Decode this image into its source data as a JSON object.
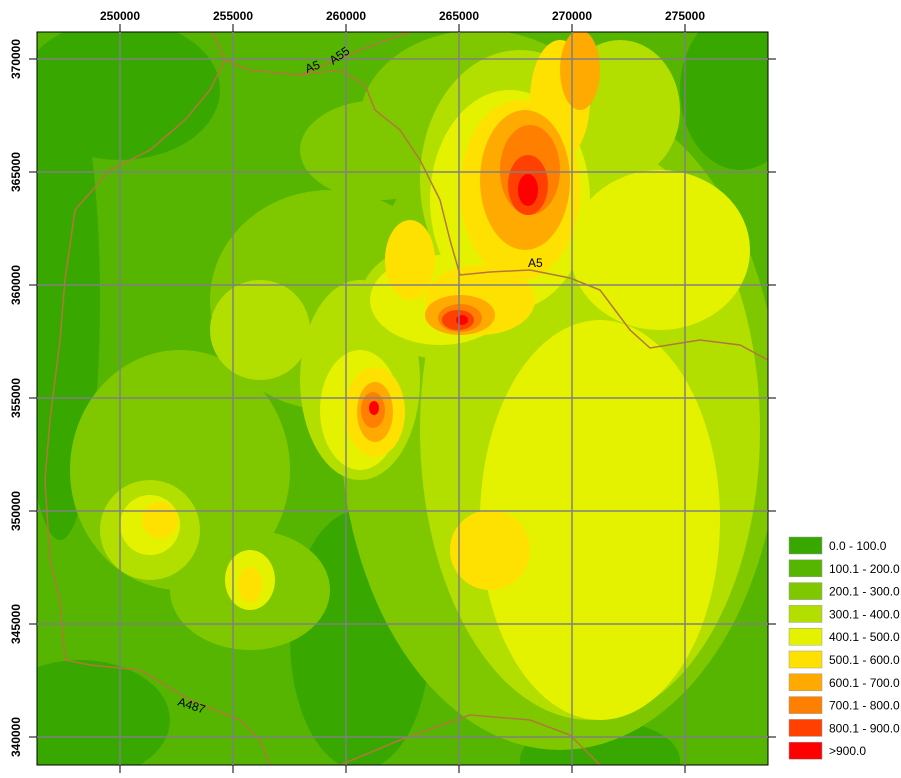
{
  "map": {
    "xlim": [
      246327,
      278673
    ],
    "ylim": [
      338761,
      371195
    ],
    "xticks": [
      250000,
      255000,
      260000,
      265000,
      270000,
      275000
    ],
    "yticks": [
      340000,
      345000,
      350000,
      355000,
      360000,
      365000,
      370000
    ],
    "grid": true,
    "road_labels": [
      "A5",
      "A55",
      "A5",
      "A487"
    ],
    "legend": [
      {
        "label": "0.0 - 100.0",
        "color": "#38a800"
      },
      {
        "label": "100.1 - 200.0",
        "color": "#55b500"
      },
      {
        "label": "200.1 - 300.0",
        "color": "#7fc800"
      },
      {
        "label": "300.1 - 400.0",
        "color": "#b2de00"
      },
      {
        "label": "400.1 - 500.0",
        "color": "#e4f200"
      },
      {
        "label": "500.1 - 600.0",
        "color": "#ffe100"
      },
      {
        "label": "600.1 - 700.0",
        "color": "#ffaa00"
      },
      {
        "label": "700.1 - 800.0",
        "color": "#ff7f00"
      },
      {
        "label": "800.1 - 900.0",
        "color": "#ff4000"
      },
      {
        "label": ">900.0",
        "color": "#ff0000"
      }
    ]
  }
}
